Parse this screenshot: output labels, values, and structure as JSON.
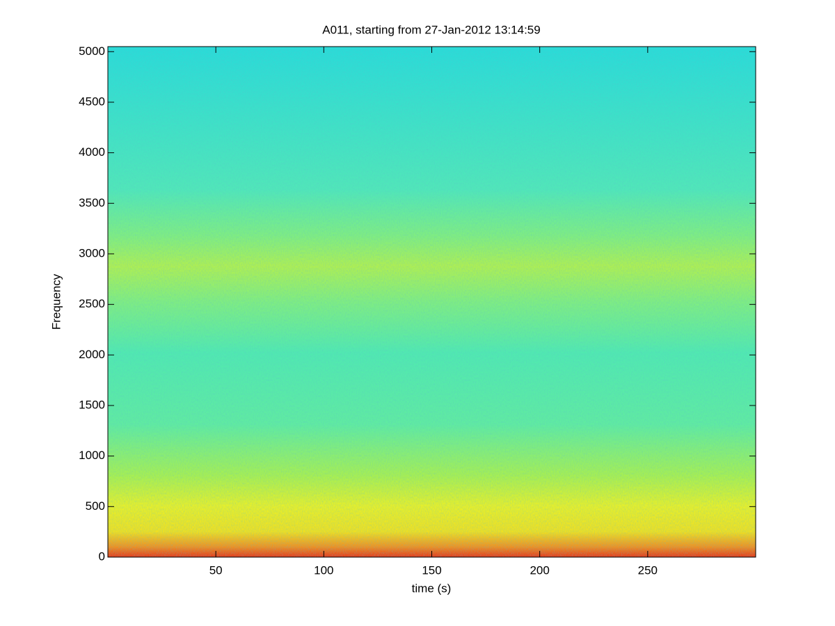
{
  "chart_data": {
    "type": "spectrogram",
    "title": "A011, starting from 27-Jan-2012 13:14:59",
    "x_label": "time (s)",
    "y_label": "Frequency",
    "xlim": [
      0,
      300
    ],
    "xticks": [
      50,
      100,
      150,
      200,
      250
    ],
    "ylim": [
      0,
      5050
    ],
    "yticks": [
      0,
      500,
      1000,
      1500,
      2000,
      2500,
      3000,
      3500,
      4000,
      4500,
      5000
    ]
  }
}
